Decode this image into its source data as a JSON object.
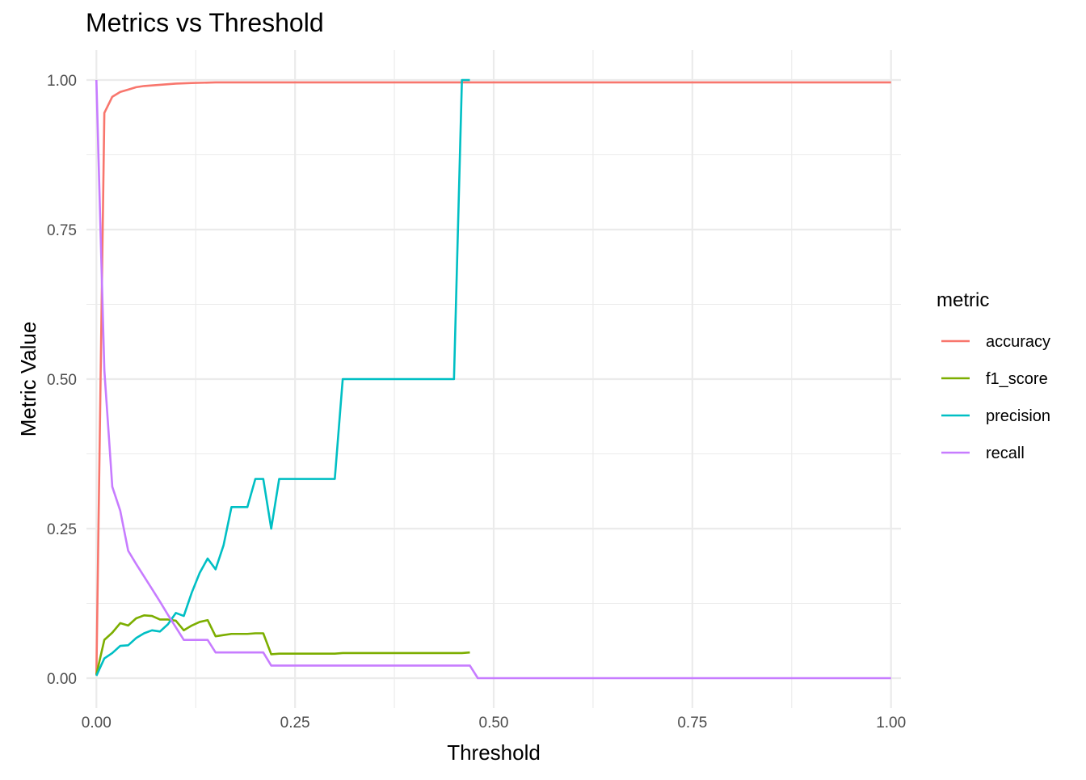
{
  "chart_data": {
    "type": "line",
    "title": "Metrics vs Threshold",
    "xlabel": "Threshold",
    "ylabel": "Metric Value",
    "xlim": [
      -0.0125,
      1.0125
    ],
    "ylim": [
      -0.05,
      1.05
    ],
    "grid": true,
    "x_ticks": [
      0,
      0.25,
      0.5,
      0.75,
      1
    ],
    "x_tick_labels": [
      "0.00",
      "0.25",
      "0.50",
      "0.75",
      "1.00"
    ],
    "y_ticks": [
      0,
      0.25,
      0.5,
      0.75,
      1
    ],
    "y_tick_labels": [
      "0.00",
      "0.25",
      "0.50",
      "0.75",
      "1.00"
    ],
    "x_minor": [
      0.125,
      0.375,
      0.625,
      0.875
    ],
    "y_minor": [
      0.125,
      0.375,
      0.625,
      0.875
    ],
    "legend": {
      "title": "metric",
      "position": "right"
    },
    "series": [
      {
        "name": "accuracy",
        "color": "#F8766D",
        "x": [
          0,
          0.01,
          0.02,
          0.03,
          0.04,
          0.05,
          0.06,
          0.07,
          0.08,
          0.09,
          0.1,
          0.12,
          0.15,
          0.2,
          0.3,
          0.5,
          0.75,
          1.0
        ],
        "y": [
          0.005,
          0.945,
          0.972,
          0.98,
          0.984,
          0.988,
          0.99,
          0.991,
          0.992,
          0.993,
          0.994,
          0.995,
          0.996,
          0.996,
          0.996,
          0.996,
          0.996,
          0.996
        ]
      },
      {
        "name": "f1_score",
        "color": "#7CAE00",
        "x": [
          0,
          0.01,
          0.02,
          0.03,
          0.04,
          0.05,
          0.06,
          0.07,
          0.08,
          0.09,
          0.1,
          0.11,
          0.12,
          0.13,
          0.14,
          0.15,
          0.16,
          0.17,
          0.18,
          0.19,
          0.2,
          0.21,
          0.22,
          0.23,
          0.24,
          0.25,
          0.3,
          0.31,
          0.35,
          0.4,
          0.45,
          0.46,
          0.47
        ],
        "y": [
          0.006,
          0.064,
          0.076,
          0.092,
          0.088,
          0.1,
          0.105,
          0.104,
          0.098,
          0.098,
          0.096,
          0.08,
          0.088,
          0.094,
          0.097,
          0.07,
          0.072,
          0.074,
          0.074,
          0.074,
          0.075,
          0.075,
          0.04,
          0.041,
          0.041,
          0.041,
          0.041,
          0.042,
          0.042,
          0.042,
          0.042,
          0.042,
          0.043
        ]
      },
      {
        "name": "precision",
        "color": "#00BFC4",
        "x": [
          0,
          0.01,
          0.02,
          0.03,
          0.04,
          0.05,
          0.06,
          0.07,
          0.08,
          0.09,
          0.1,
          0.11,
          0.12,
          0.13,
          0.14,
          0.15,
          0.16,
          0.17,
          0.18,
          0.19,
          0.2,
          0.21,
          0.22,
          0.23,
          0.24,
          0.25,
          0.26,
          0.27,
          0.28,
          0.29,
          0.3,
          0.31,
          0.35,
          0.4,
          0.45,
          0.46,
          0.47
        ],
        "y": [
          0.004,
          0.033,
          0.042,
          0.054,
          0.055,
          0.067,
          0.075,
          0.08,
          0.078,
          0.09,
          0.109,
          0.104,
          0.143,
          0.176,
          0.2,
          0.182,
          0.222,
          0.286,
          0.286,
          0.286,
          0.333,
          0.333,
          0.25,
          0.333,
          0.333,
          0.333,
          0.333,
          0.333,
          0.333,
          0.333,
          0.333,
          0.5,
          0.5,
          0.5,
          0.5,
          1.0,
          1.0
        ]
      },
      {
        "name": "recall",
        "color": "#C77CFF",
        "x": [
          0,
          0.01,
          0.02,
          0.03,
          0.04,
          0.05,
          0.06,
          0.07,
          0.08,
          0.09,
          0.1,
          0.11,
          0.12,
          0.13,
          0.14,
          0.15,
          0.16,
          0.17,
          0.18,
          0.19,
          0.2,
          0.21,
          0.22,
          0.23,
          0.3,
          0.4,
          0.47,
          0.48,
          0.5,
          0.75,
          1.0
        ],
        "y": [
          1.0,
          0.515,
          0.32,
          0.28,
          0.213,
          0.191,
          0.17,
          0.149,
          0.128,
          0.106,
          0.085,
          0.064,
          0.064,
          0.064,
          0.064,
          0.043,
          0.043,
          0.043,
          0.043,
          0.043,
          0.043,
          0.043,
          0.021,
          0.021,
          0.021,
          0.021,
          0.021,
          0.0,
          0.0,
          0.0,
          0.0
        ]
      }
    ]
  }
}
